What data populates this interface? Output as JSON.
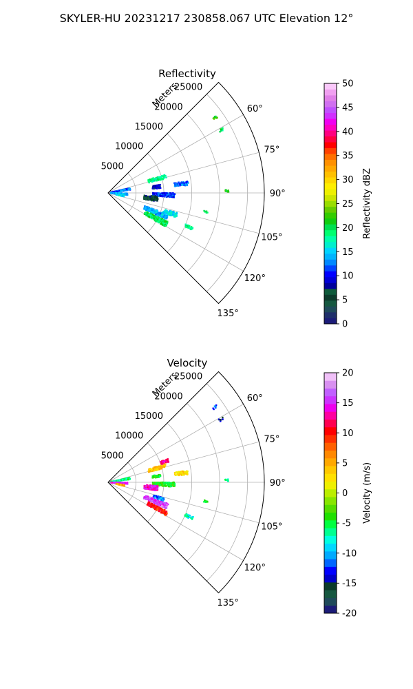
{
  "figure": {
    "title": "SKYLER-HU  20231217  230858.067 UTC Elevation 12°"
  },
  "chart_data": [
    {
      "type": "heatmap",
      "projection": "polar-sector",
      "title": "Reflectivity",
      "range_label": "Meters",
      "range_ticks": [
        5000,
        10000,
        15000,
        20000,
        25000
      ],
      "range_max": 28000,
      "azimuth_range": [
        45,
        135
      ],
      "azimuth_ticks": [
        60,
        75,
        90,
        105,
        120,
        135
      ],
      "azimuth_tick_labels": [
        "60°",
        "75°",
        "90°",
        "105°",
        "120°",
        "135°"
      ],
      "grid": true,
      "colorbar": {
        "label": "Reflectivity dBZ",
        "min": 0,
        "max": 50,
        "ticks": [
          0,
          5,
          10,
          15,
          20,
          25,
          30,
          35,
          40,
          45,
          50
        ],
        "colors": [
          "#1c1c78",
          "#1f2f6a",
          "#1f4a5a",
          "#165840",
          "#0b3a2a",
          "#0e5a3a",
          "#00009c",
          "#0000d6",
          "#0000ff",
          "#0044ff",
          "#0088ff",
          "#00b4ff",
          "#00d4ff",
          "#00eecc",
          "#00ffaa",
          "#00ff70",
          "#00e050",
          "#10cc10",
          "#33cc00",
          "#66cc00",
          "#99dd00",
          "#cce600",
          "#eef000",
          "#ffee00",
          "#ffd700",
          "#ffc000",
          "#ffa800",
          "#ff9000",
          "#ff7000",
          "#ff4000",
          "#ff0000",
          "#ff0040",
          "#ff0080",
          "#ff00c0",
          "#f000f0",
          "#d030ff",
          "#c050ff",
          "#d070f0",
          "#e080e8",
          "#f0a0f0",
          "#fac8fa"
        ]
      },
      "echo_clusters": [
        {
          "azimuth": 74,
          "range_from": 7500,
          "range_to": 10800,
          "az_spread": 4,
          "value": 18
        },
        {
          "azimuth": 83,
          "range_from": 8000,
          "range_to": 9500,
          "az_spread": 4,
          "value": 9
        },
        {
          "azimuth": 83,
          "range_from": 12000,
          "range_to": 14500,
          "az_spread": 3,
          "value": 12
        },
        {
          "azimuth": 92,
          "range_from": 8000,
          "range_to": 12000,
          "az_spread": 4,
          "value": 11
        },
        {
          "azimuth": 97,
          "range_from": 6500,
          "range_to": 9000,
          "az_spread": 6,
          "value": 6
        },
        {
          "azimuth": 112,
          "range_from": 7000,
          "range_to": 11500,
          "az_spread": 5,
          "value": 14
        },
        {
          "azimuth": 118,
          "range_from": 7500,
          "range_to": 12000,
          "az_spread": 5,
          "value": 20
        },
        {
          "azimuth": 108,
          "range_from": 10500,
          "range_to": 13000,
          "az_spread": 4,
          "value": 16
        },
        {
          "azimuth": 80,
          "range_from": 500,
          "range_to": 4000,
          "az_spread": 5,
          "value": 12
        },
        {
          "azimuth": 94,
          "range_from": 500,
          "range_to": 3500,
          "az_spread": 6,
          "value": 14
        },
        {
          "azimuth": 101,
          "range_from": 1500,
          "range_to": 3000,
          "az_spread": 4,
          "value": 16
        },
        {
          "azimuth": 55,
          "range_from": 23000,
          "range_to": 23800,
          "az_spread": 1,
          "value": 22
        },
        {
          "azimuth": 61,
          "range_from": 22800,
          "range_to": 23600,
          "az_spread": 1,
          "value": 20
        },
        {
          "azimuth": 89,
          "range_from": 21000,
          "range_to": 21600,
          "az_spread": 1,
          "value": 22
        },
        {
          "azimuth": 101,
          "range_from": 17500,
          "range_to": 18200,
          "az_spread": 1,
          "value": 20
        },
        {
          "azimuth": 113,
          "range_from": 15000,
          "range_to": 16500,
          "az_spread": 2,
          "value": 18
        }
      ]
    },
    {
      "type": "heatmap",
      "projection": "polar-sector",
      "title": "Velocity",
      "range_label": "Meters",
      "range_ticks": [
        5000,
        10000,
        15000,
        20000,
        25000
      ],
      "range_max": 28000,
      "azimuth_range": [
        45,
        135
      ],
      "azimuth_ticks": [
        60,
        75,
        90,
        105,
        120,
        135
      ],
      "azimuth_tick_labels": [
        "60°",
        "75°",
        "90°",
        "105°",
        "120°",
        "135°"
      ],
      "grid": true,
      "colorbar": {
        "label": "Velocity (m/s)",
        "min": -20,
        "max": 20,
        "ticks": [
          -20,
          -15,
          -10,
          -5,
          0,
          5,
          10,
          15,
          20
        ],
        "colors": [
          "#1c1c78",
          "#1f4a5a",
          "#165840",
          "#0b3a2a",
          "#0000c8",
          "#0000ff",
          "#0066ff",
          "#00aaff",
          "#00d8ff",
          "#00ffe0",
          "#00ff90",
          "#00ff40",
          "#20e000",
          "#55dd00",
          "#88e600",
          "#bbee00",
          "#eef000",
          "#ffe000",
          "#ffc800",
          "#ffa800",
          "#ff8800",
          "#ff6000",
          "#ff3000",
          "#ff0000",
          "#ff0050",
          "#ff00a0",
          "#ee00ee",
          "#cc33ff",
          "#c060ff",
          "#d890f0",
          "#f0c0f8"
        ]
      },
      "echo_clusters": [
        {
          "azimuth": 74,
          "range_from": 7500,
          "range_to": 10800,
          "az_spread": 4,
          "value": 4
        },
        {
          "azimuth": 70,
          "range_from": 10000,
          "range_to": 11500,
          "az_spread": 3,
          "value": 12
        },
        {
          "azimuth": 83,
          "range_from": 8000,
          "range_to": 9500,
          "az_spread": 3,
          "value": -5
        },
        {
          "azimuth": 83,
          "range_from": 12000,
          "range_to": 14500,
          "az_spread": 3,
          "value": 3
        },
        {
          "azimuth": 92,
          "range_from": 8000,
          "range_to": 12000,
          "az_spread": 4,
          "value": -4
        },
        {
          "azimuth": 97,
          "range_from": 6500,
          "range_to": 9000,
          "az_spread": 6,
          "value": 14
        },
        {
          "azimuth": 112,
          "range_from": 7000,
          "range_to": 11500,
          "az_spread": 5,
          "value": 16
        },
        {
          "azimuth": 118,
          "range_from": 8000,
          "range_to": 12000,
          "az_spread": 4,
          "value": 10
        },
        {
          "azimuth": 107,
          "range_from": 8500,
          "range_to": 10500,
          "az_spread": 3,
          "value": -11
        },
        {
          "azimuth": 80,
          "range_from": 500,
          "range_to": 4000,
          "az_spread": 5,
          "value": -6
        },
        {
          "azimuth": 93,
          "range_from": 500,
          "range_to": 3500,
          "az_spread": 5,
          "value": 15
        },
        {
          "azimuth": 101,
          "range_from": 1500,
          "range_to": 3000,
          "az_spread": 4,
          "value": 5
        },
        {
          "azimuth": 55,
          "range_from": 23000,
          "range_to": 23800,
          "az_spread": 1,
          "value": -12
        },
        {
          "azimuth": 61,
          "range_from": 22800,
          "range_to": 23600,
          "az_spread": 1,
          "value": -14
        },
        {
          "azimuth": 89,
          "range_from": 21000,
          "range_to": 21600,
          "az_spread": 1,
          "value": -6
        },
        {
          "azimuth": 101,
          "range_from": 17500,
          "range_to": 18200,
          "az_spread": 1,
          "value": -5
        },
        {
          "azimuth": 113,
          "range_from": 15000,
          "range_to": 16500,
          "az_spread": 2,
          "value": -7
        }
      ]
    }
  ]
}
